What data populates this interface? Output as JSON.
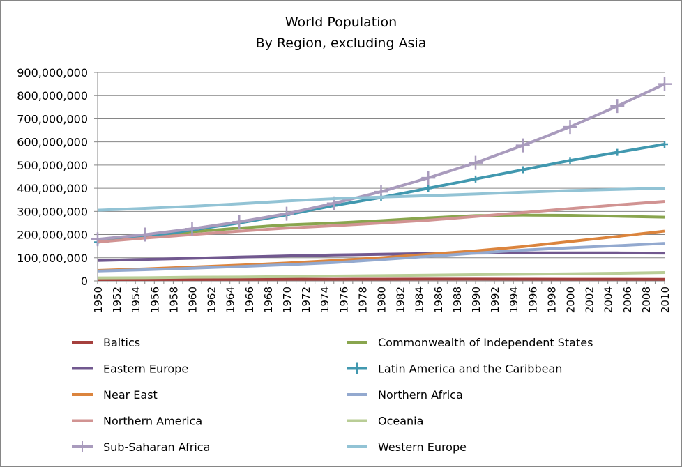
{
  "chart_data": {
    "type": "line",
    "title": "World Population",
    "subtitle": "By Region, excluding Asia",
    "xlabel": "",
    "ylabel": "",
    "ylim": [
      0,
      900000000
    ],
    "yticks": [
      "0",
      "100,000,000",
      "200,000,000",
      "300,000,000",
      "400,000,000",
      "500,000,000",
      "600,000,000",
      "700,000,000",
      "800,000,000",
      "900,000,000"
    ],
    "xlim": [
      1950,
      2010
    ],
    "x": [
      1950,
      1955,
      1960,
      1965,
      1970,
      1975,
      1980,
      1985,
      1990,
      1995,
      2000,
      2005,
      2010
    ],
    "grid": "horizontal",
    "legend_position": "bottom",
    "series": [
      {
        "name": "Baltics",
        "color": "#A5403D",
        "marker": "none",
        "values": [
          6000000,
          6000000,
          6300000,
          6700000,
          7000000,
          7300000,
          7500000,
          7800000,
          8000000,
          7700000,
          7300000,
          7000000,
          6900000
        ]
      },
      {
        "name": "Commonwealth of Independent States",
        "color": "#89A54E",
        "marker": "none",
        "values": [
          178000000,
          195000000,
          212000000,
          228000000,
          242000000,
          250000000,
          260000000,
          272000000,
          282000000,
          284000000,
          283000000,
          279000000,
          275000000
        ]
      },
      {
        "name": "Eastern Europe",
        "color": "#71588F",
        "marker": "none",
        "values": [
          88000000,
          93000000,
          98000000,
          103000000,
          108000000,
          112000000,
          115000000,
          118000000,
          120000000,
          121000000,
          121000000,
          121000000,
          120000000
        ]
      },
      {
        "name": "Latin America and the Caribbean",
        "color": "#4198AF",
        "marker": "plus",
        "values": [
          167000000,
          190000000,
          220000000,
          250000000,
          285000000,
          325000000,
          360000000,
          400000000,
          440000000,
          480000000,
          520000000,
          555000000,
          590000000
        ]
      },
      {
        "name": "Near East",
        "color": "#DB843D",
        "marker": "none",
        "values": [
          45000000,
          52000000,
          60000000,
          68000000,
          77000000,
          88000000,
          100000000,
          115000000,
          130000000,
          148000000,
          170000000,
          192000000,
          215000000
        ]
      },
      {
        "name": "Northern Africa",
        "color": "#93A9CF",
        "marker": "none",
        "values": [
          43000000,
          48000000,
          55000000,
          62000000,
          70000000,
          79000000,
          92000000,
          106000000,
          120000000,
          133000000,
          143000000,
          152000000,
          162000000
        ]
      },
      {
        "name": "Northern America",
        "color": "#D19392",
        "marker": "none",
        "values": [
          168000000,
          185000000,
          200000000,
          215000000,
          228000000,
          238000000,
          250000000,
          262000000,
          278000000,
          295000000,
          312000000,
          328000000,
          343000000
        ]
      },
      {
        "name": "Oceania",
        "color": "#B9CD96",
        "marker": "none",
        "values": [
          13000000,
          14000000,
          16000000,
          17000000,
          19000000,
          21000000,
          23000000,
          25000000,
          27000000,
          29000000,
          31000000,
          33000000,
          36000000
        ]
      },
      {
        "name": "Sub-Saharan Africa",
        "color": "#A99BBD",
        "marker": "plus",
        "values": [
          180000000,
          200000000,
          225000000,
          255000000,
          290000000,
          335000000,
          385000000,
          445000000,
          510000000,
          585000000,
          665000000,
          755000000,
          850000000
        ]
      },
      {
        "name": "Western Europe",
        "color": "#92C3D5",
        "marker": "none",
        "values": [
          305000000,
          313000000,
          322000000,
          333000000,
          345000000,
          355000000,
          362000000,
          368000000,
          375000000,
          383000000,
          390000000,
          395000000,
          400000000
        ]
      }
    ]
  }
}
